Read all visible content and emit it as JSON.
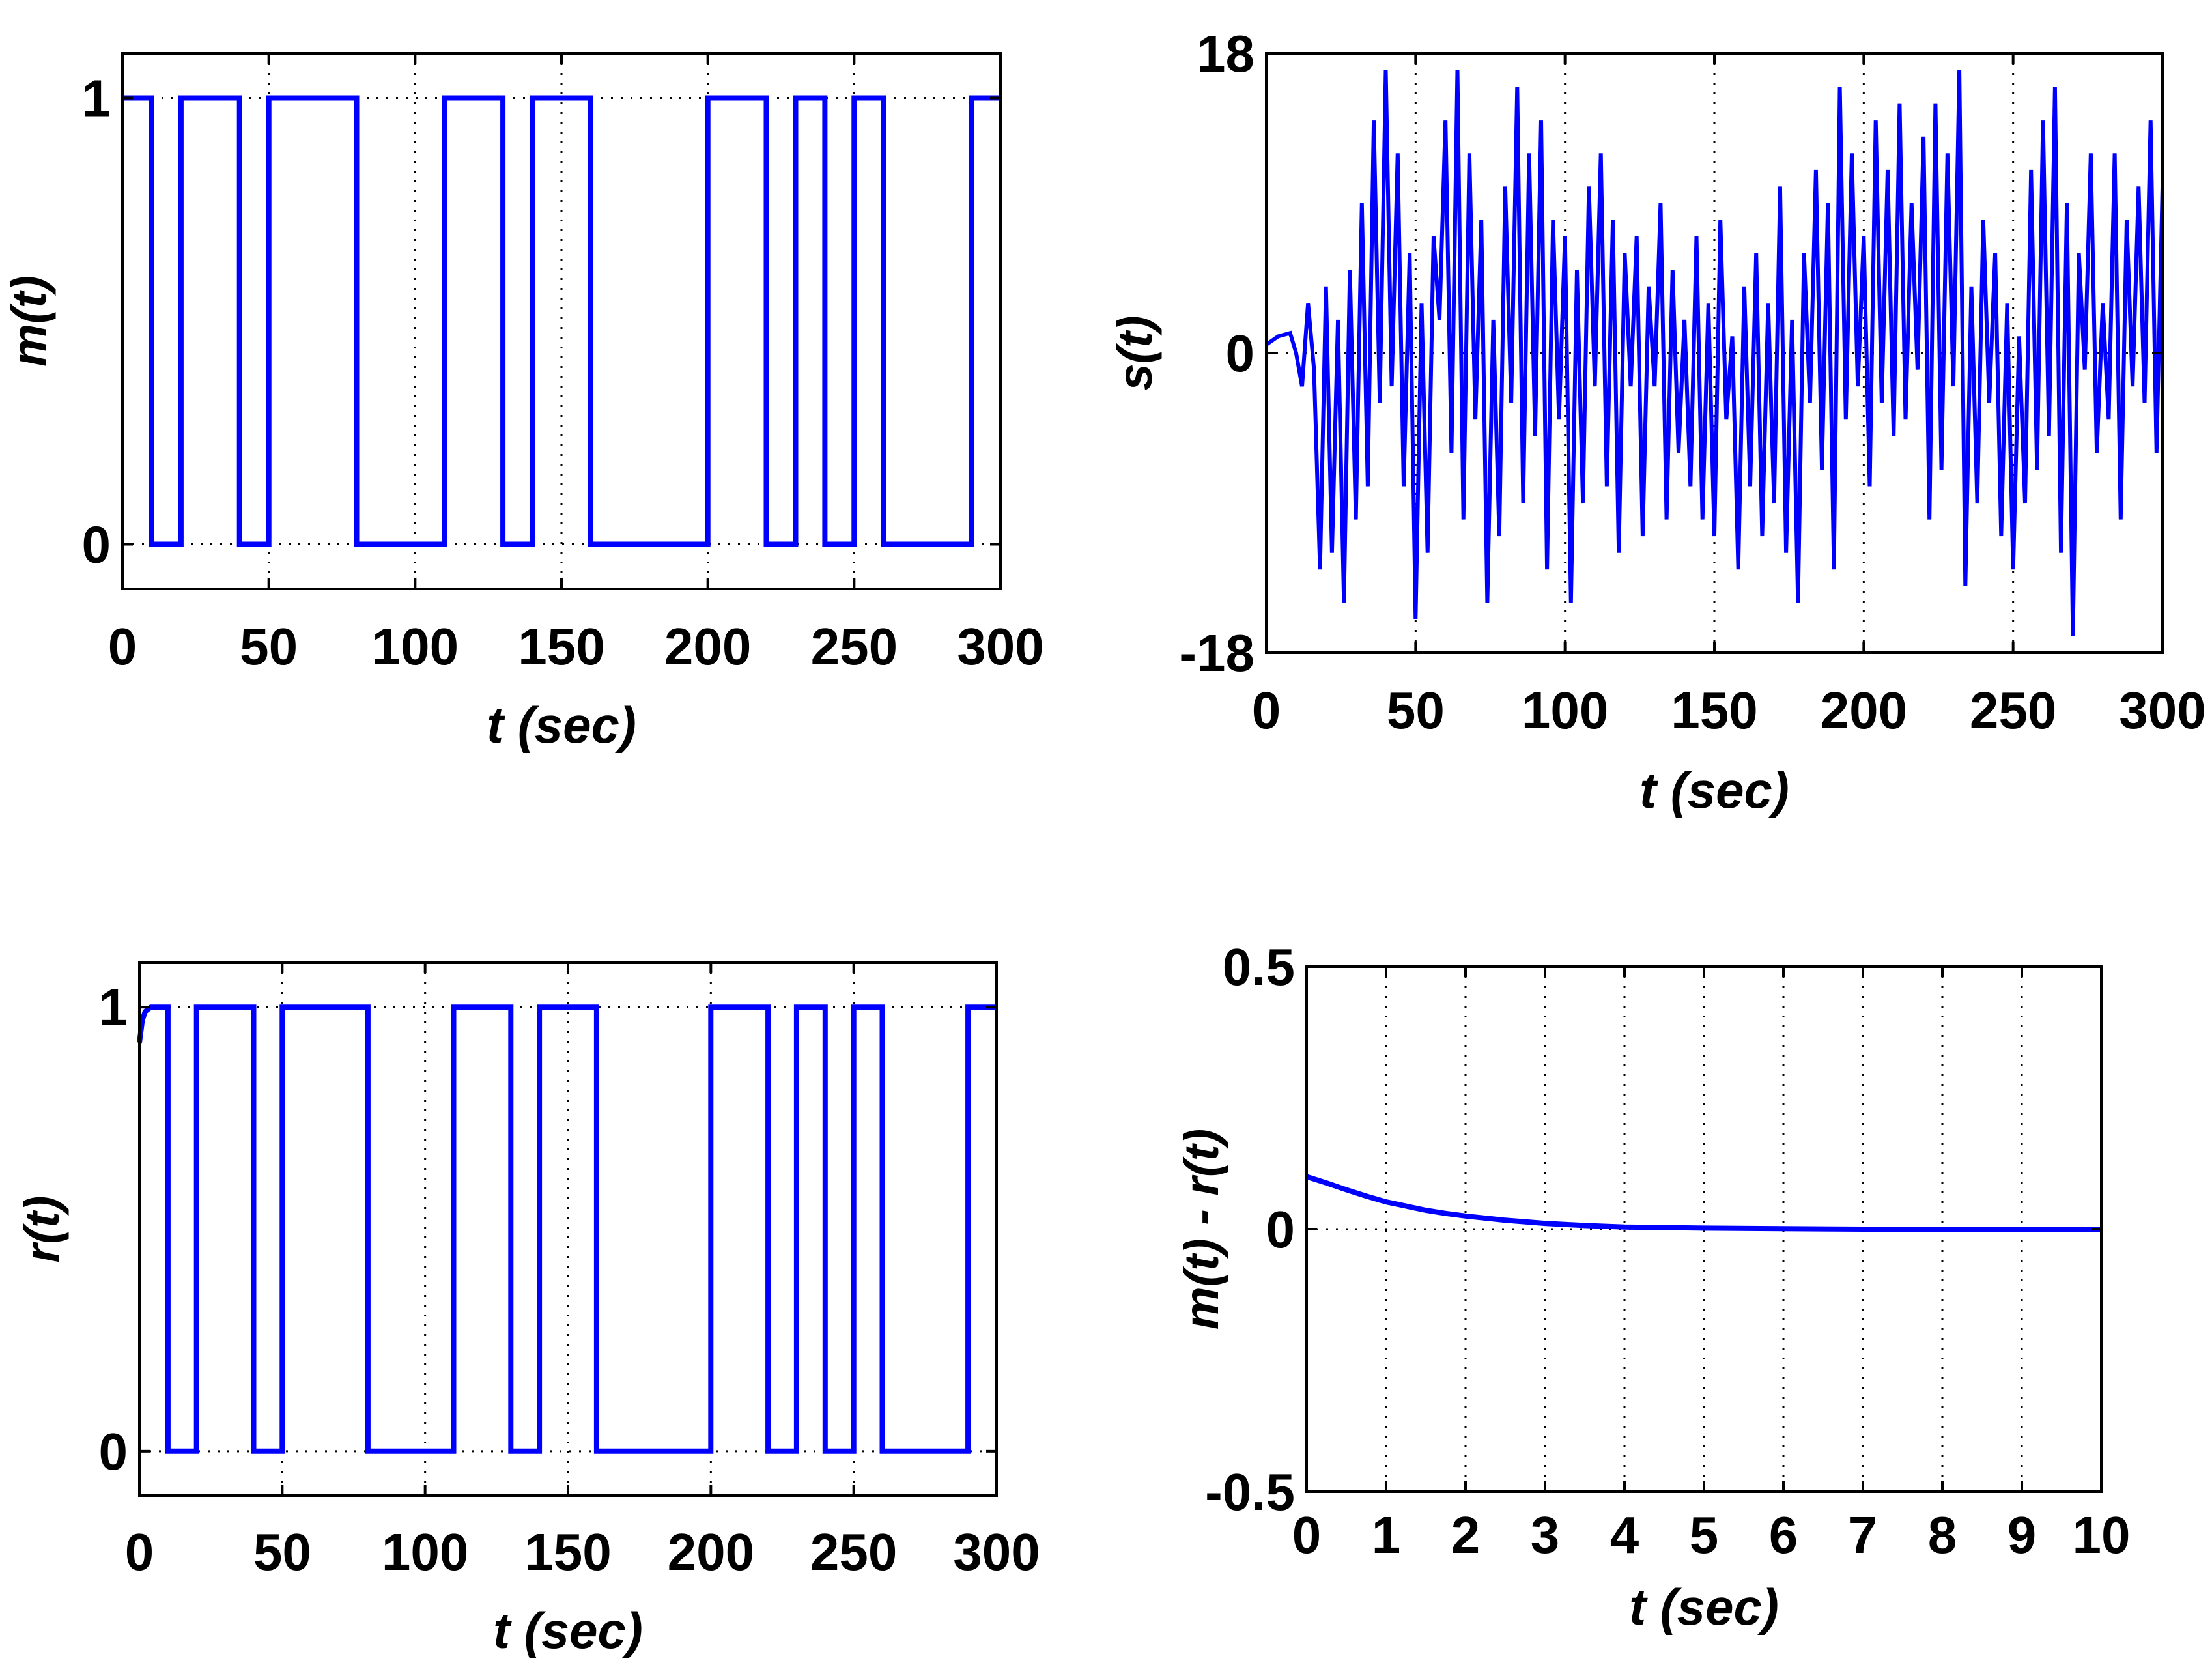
{
  "figure": {
    "background": "#ffffff",
    "line_color": "#0000ff",
    "frame_color": "#000000"
  },
  "chart_data": [
    {
      "id": "m",
      "type": "line",
      "xlabel": "t (sec)",
      "ylabel": "m(t)",
      "xlim": [
        0,
        300
      ],
      "ylim": [
        -0.1,
        1.1
      ],
      "xticks": [
        0,
        50,
        100,
        150,
        200,
        250,
        300
      ],
      "xtick_labels": [
        "0",
        "50",
        "100",
        "150",
        "200",
        "250",
        "300"
      ],
      "yticks": [
        0,
        1
      ],
      "ytick_labels": [
        "0",
        "1"
      ],
      "grid": true,
      "series": [
        {
          "style": "step",
          "x": [
            0,
            10,
            10,
            20,
            20,
            40,
            40,
            50,
            50,
            80,
            80,
            110,
            110,
            130,
            130,
            140,
            140,
            160,
            160,
            200,
            200,
            220,
            220,
            230,
            230,
            240,
            240,
            250,
            250,
            260,
            260,
            290,
            290,
            300
          ],
          "y": [
            1,
            1,
            0,
            0,
            1,
            1,
            0,
            0,
            1,
            1,
            0,
            0,
            1,
            1,
            0,
            0,
            1,
            1,
            0,
            0,
            1,
            1,
            0,
            0,
            1,
            1,
            0,
            0,
            1,
            1,
            0,
            0,
            1,
            1
          ]
        }
      ]
    },
    {
      "id": "s",
      "type": "line",
      "xlabel": "t (sec)",
      "ylabel": "s(t)",
      "xlim": [
        0,
        300
      ],
      "ylim": [
        -18,
        18
      ],
      "xticks": [
        0,
        50,
        100,
        150,
        200,
        250,
        300
      ],
      "xtick_labels": [
        "0",
        "50",
        "100",
        "150",
        "200",
        "250",
        "300"
      ],
      "yticks": [
        -18,
        0,
        18
      ],
      "ytick_labels": [
        "-18",
        "0",
        "18"
      ],
      "grid": true,
      "series": [
        {
          "style": "line",
          "x": [
            0,
            4,
            8,
            10,
            12,
            14,
            16,
            18,
            20,
            22,
            24,
            26,
            28,
            30,
            32,
            34,
            36,
            38,
            40,
            42,
            44,
            46,
            48,
            50,
            52,
            54,
            56,
            58,
            60,
            62,
            64,
            66,
            68,
            70,
            72,
            74,
            76,
            78,
            80,
            82,
            84,
            86,
            88,
            90,
            92,
            94,
            96,
            98,
            100,
            102,
            104,
            106,
            108,
            110,
            112,
            114,
            116,
            118,
            120,
            122,
            124,
            126,
            128,
            130,
            132,
            134,
            136,
            138,
            140,
            142,
            144,
            146,
            148,
            150,
            152,
            154,
            156,
            158,
            160,
            162,
            164,
            166,
            168,
            170,
            172,
            174,
            176,
            178,
            180,
            182,
            184,
            186,
            188,
            190,
            192,
            194,
            196,
            198,
            200,
            202,
            204,
            206,
            208,
            210,
            212,
            214,
            216,
            218,
            220,
            222,
            224,
            226,
            228,
            230,
            232,
            234,
            236,
            238,
            240,
            242,
            244,
            246,
            248,
            250,
            252,
            254,
            256,
            258,
            260,
            262,
            264,
            266,
            268,
            270,
            272,
            274,
            276,
            278,
            280,
            282,
            284,
            286,
            288,
            290,
            292,
            294,
            296,
            298,
            300
          ],
          "y": [
            0.5,
            1,
            1.2,
            0,
            -2,
            3,
            -1,
            -13,
            4,
            -12,
            2,
            -15,
            5,
            -10,
            9,
            -8,
            14,
            -3,
            17,
            -2,
            12,
            -8,
            6,
            -16,
            3,
            -12,
            7,
            2,
            14,
            -6,
            17,
            -10,
            12,
            -4,
            8,
            -15,
            2,
            -11,
            10,
            -3,
            16,
            -9,
            12,
            -5,
            14,
            -13,
            8,
            -4,
            7,
            -15,
            5,
            -9,
            10,
            -2,
            12,
            -8,
            8,
            -12,
            6,
            -2,
            7,
            -11,
            4,
            -2,
            9,
            -10,
            5,
            -6,
            2,
            -8,
            7,
            -10,
            3,
            -11,
            8,
            -4,
            1,
            -13,
            4,
            -8,
            6,
            -11,
            3,
            -9,
            10,
            -12,
            2,
            -15,
            6,
            -3,
            11,
            -7,
            9,
            -13,
            16,
            -4,
            12,
            -2,
            7,
            -8,
            14,
            -3,
            11,
            -5,
            15,
            -4,
            9,
            -1,
            13,
            -10,
            15,
            -7,
            12,
            -2,
            17,
            -14,
            4,
            -9,
            8,
            -3,
            6,
            -11,
            3,
            -13,
            1,
            -9,
            11,
            -7,
            14,
            -5,
            16,
            -12,
            9,
            -17,
            6,
            -1,
            12,
            -6,
            3,
            -4,
            12,
            -10,
            8,
            -2,
            10,
            -3,
            14,
            -6,
            10
          ]
        }
      ]
    },
    {
      "id": "r",
      "type": "line",
      "xlabel": "t (sec)",
      "ylabel": "r(t)",
      "xlim": [
        0,
        300
      ],
      "ylim": [
        -0.1,
        1.1
      ],
      "xticks": [
        0,
        50,
        100,
        150,
        200,
        250,
        300
      ],
      "xtick_labels": [
        "0",
        "50",
        "100",
        "150",
        "200",
        "250",
        "300"
      ],
      "yticks": [
        0,
        1
      ],
      "ytick_labels": [
        "0",
        "1"
      ],
      "grid": true,
      "series": [
        {
          "style": "step",
          "x": [
            0,
            1,
            2,
            4,
            10,
            10,
            20,
            20,
            40,
            40,
            50,
            50,
            80,
            80,
            110,
            110,
            130,
            130,
            140,
            140,
            160,
            160,
            200,
            200,
            220,
            220,
            230,
            230,
            240,
            240,
            250,
            250,
            260,
            260,
            290,
            290,
            300
          ],
          "y": [
            0.92,
            0.97,
            0.99,
            1,
            1,
            0,
            0,
            1,
            1,
            0,
            0,
            1,
            1,
            0,
            0,
            1,
            1,
            0,
            0,
            1,
            1,
            0,
            0,
            1,
            1,
            0,
            0,
            1,
            1,
            0,
            0,
            1,
            1,
            0,
            0,
            1,
            1
          ]
        }
      ]
    },
    {
      "id": "e",
      "type": "line",
      "xlabel": "t (sec)",
      "ylabel": "m(t) - r(t)",
      "xlim": [
        0,
        10
      ],
      "ylim": [
        -0.5,
        0.5
      ],
      "xticks": [
        0,
        1,
        2,
        3,
        4,
        5,
        6,
        7,
        8,
        9,
        10
      ],
      "xtick_labels": [
        "0",
        "1",
        "2",
        "3",
        "4",
        "5",
        "6",
        "7",
        "8",
        "9",
        "10"
      ],
      "yticks": [
        -0.5,
        0,
        0.5
      ],
      "ytick_labels": [
        "-0.5",
        "0",
        "0.5"
      ],
      "grid": true,
      "series": [
        {
          "style": "line",
          "x": [
            0,
            0.25,
            0.5,
            0.75,
            1,
            1.25,
            1.5,
            1.75,
            2,
            2.5,
            3,
            3.5,
            4,
            5,
            6,
            7,
            8,
            9,
            10
          ],
          "y": [
            0.1,
            0.088,
            0.075,
            0.063,
            0.052,
            0.044,
            0.036,
            0.03,
            0.025,
            0.017,
            0.011,
            0.007,
            0.004,
            0.002,
            0.001,
            0,
            0,
            0,
            0
          ]
        }
      ]
    }
  ]
}
